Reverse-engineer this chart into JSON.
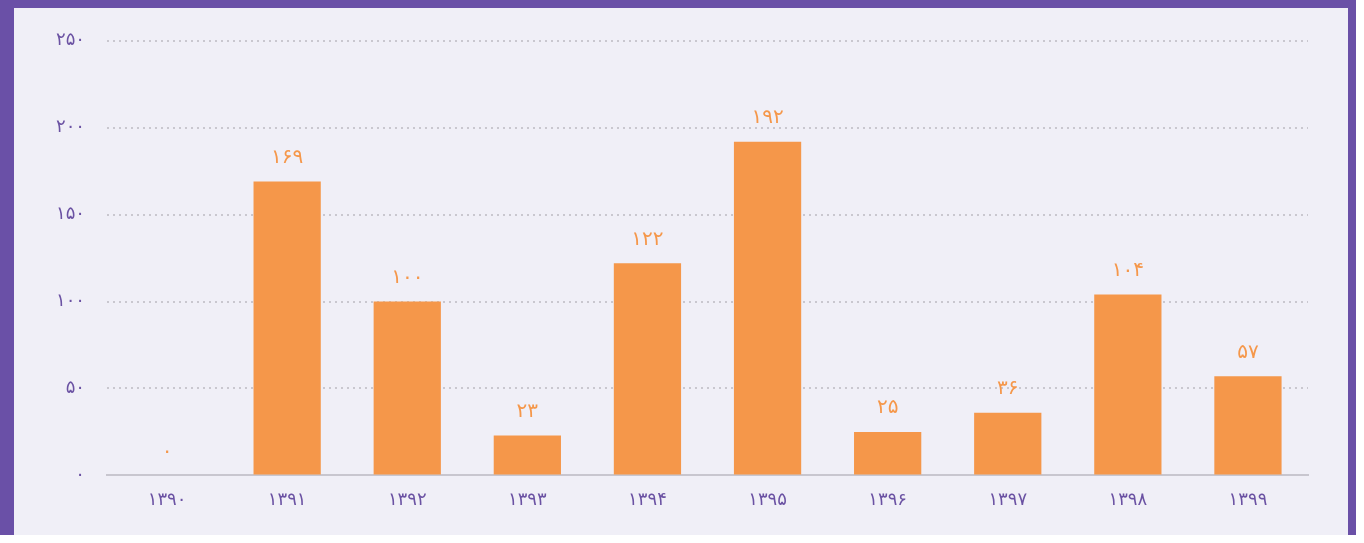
{
  "chart_data": {
    "type": "bar",
    "categories": [
      "۱۳۹۰",
      "۱۳۹۱",
      "۱۳۹۲",
      "۱۳۹۳",
      "۱۳۹۴",
      "۱۳۹۵",
      "۱۳۹۶",
      "۱۳۹۷",
      "۱۳۹۸",
      "۱۳۹۹"
    ],
    "values": [
      0,
      169,
      100,
      23,
      122,
      192,
      25,
      36,
      104,
      57
    ],
    "value_labels": [
      "۰",
      "۱۶۹",
      "۱۰۰",
      "۲۳",
      "۱۲۲",
      "۱۹۲",
      "۲۵",
      "۳۶",
      "۱۰۴",
      "۵۷"
    ],
    "color": "#f5974a",
    "ylim": [
      0,
      250
    ],
    "yticks": [
      {
        "value": 0,
        "label": "۰"
      },
      {
        "value": 50,
        "label": "۵۰"
      },
      {
        "value": 100,
        "label": "۱۰۰"
      },
      {
        "value": 150,
        "label": "۱۵۰"
      },
      {
        "value": 200,
        "label": "۲۰۰"
      },
      {
        "value": 250,
        "label": "۲۵۰"
      }
    ],
    "grid": "y",
    "legend": false
  }
}
